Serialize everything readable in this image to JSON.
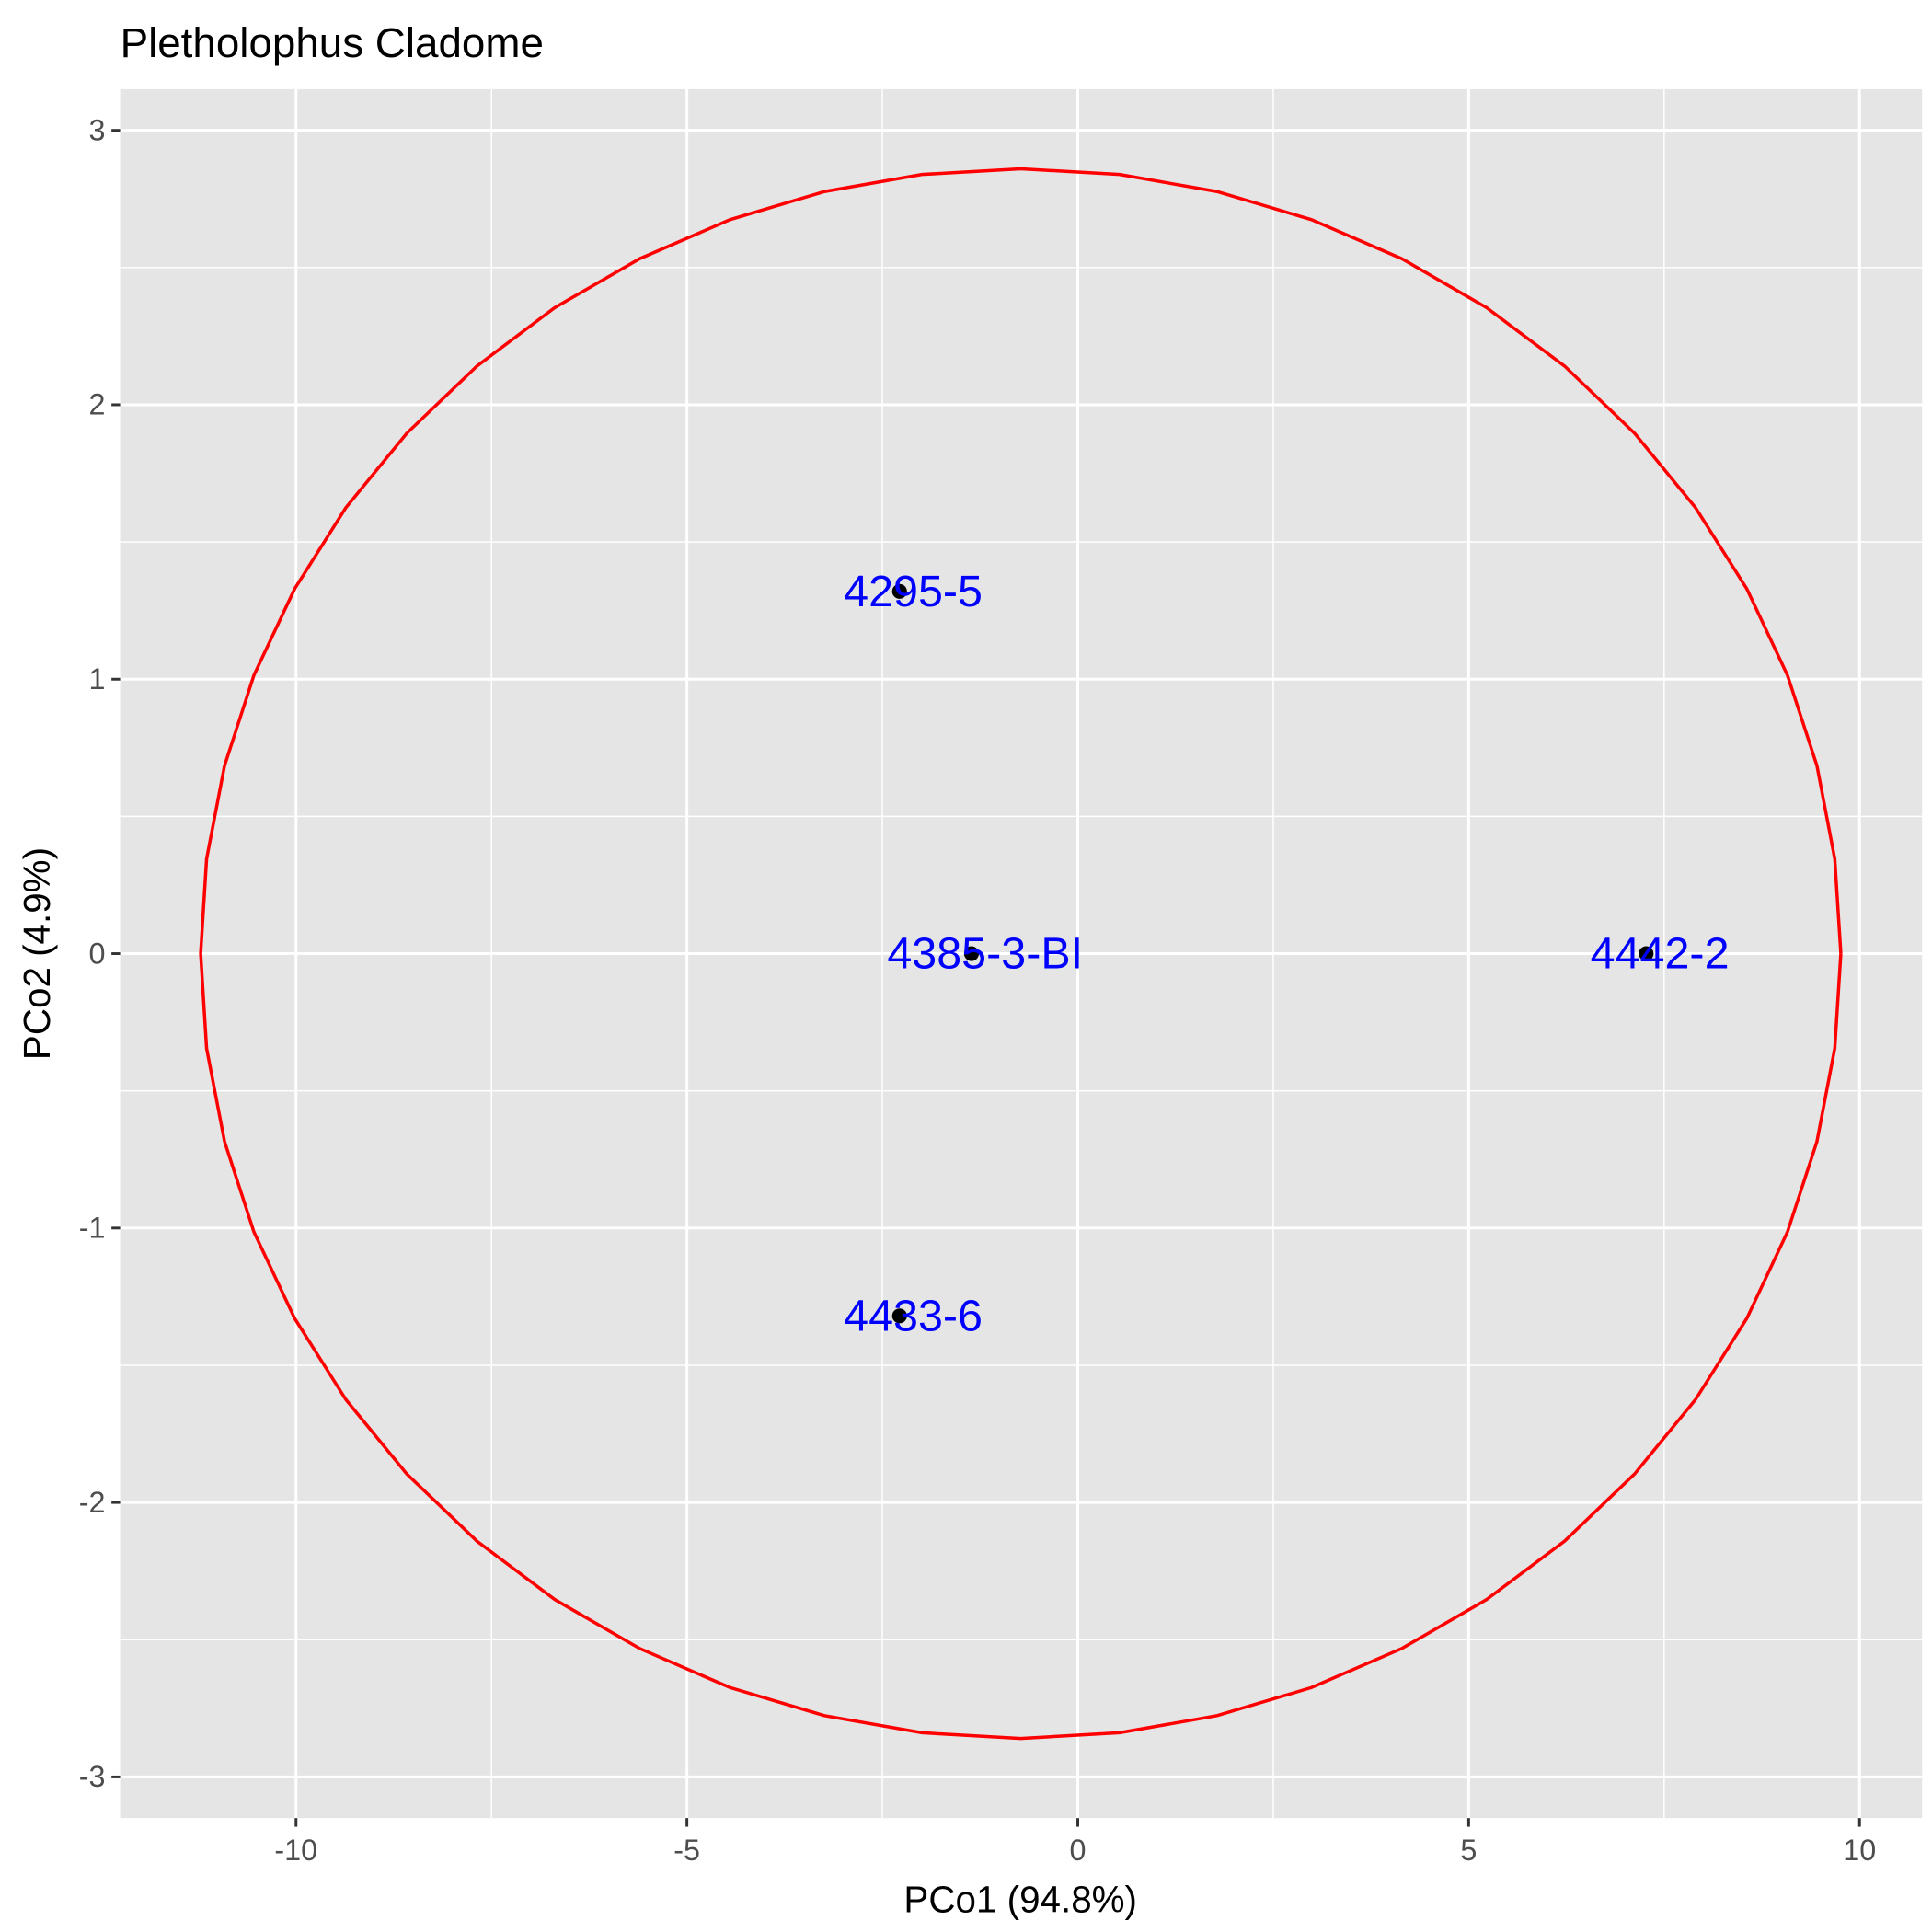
{
  "chart_data": {
    "type": "scatter",
    "title": "Pletholophus Cladome",
    "xlabel": "PCo1 (94.8%)",
    "ylabel": "PCo2 (4.9%)",
    "xlim": [
      -12.25,
      10.8
    ],
    "ylim": [
      -3.15,
      3.15
    ],
    "xticks": [
      -10,
      -5,
      0,
      5,
      10
    ],
    "xtick_labels": [
      "-10",
      "-5",
      "0",
      "5",
      "10"
    ],
    "yticks": [
      -3,
      -2,
      -1,
      0,
      1,
      2,
      3
    ],
    "ytick_labels": [
      "-3",
      "-2",
      "-1",
      "0",
      "1",
      "2",
      "3"
    ],
    "grid": true,
    "points": [
      {
        "label": "4295-5",
        "x": -2.28,
        "y": 1.32
      },
      {
        "label": "4385-3-BI",
        "x": -1.36,
        "y": 0.0
      },
      {
        "label": "4442-2",
        "x": 7.27,
        "y": 0.0
      },
      {
        "label": "4433-6",
        "x": -2.28,
        "y": -1.32
      }
    ],
    "ellipse": {
      "cx": -0.73,
      "cy": 0.0,
      "rx": 10.49,
      "ry": 2.86,
      "segments": 52
    },
    "colors": {
      "panel": "#e5e5e5",
      "grid": "#ffffff",
      "ellipse": "#ff0000",
      "label": "#0000ff",
      "point": "#000000"
    }
  }
}
